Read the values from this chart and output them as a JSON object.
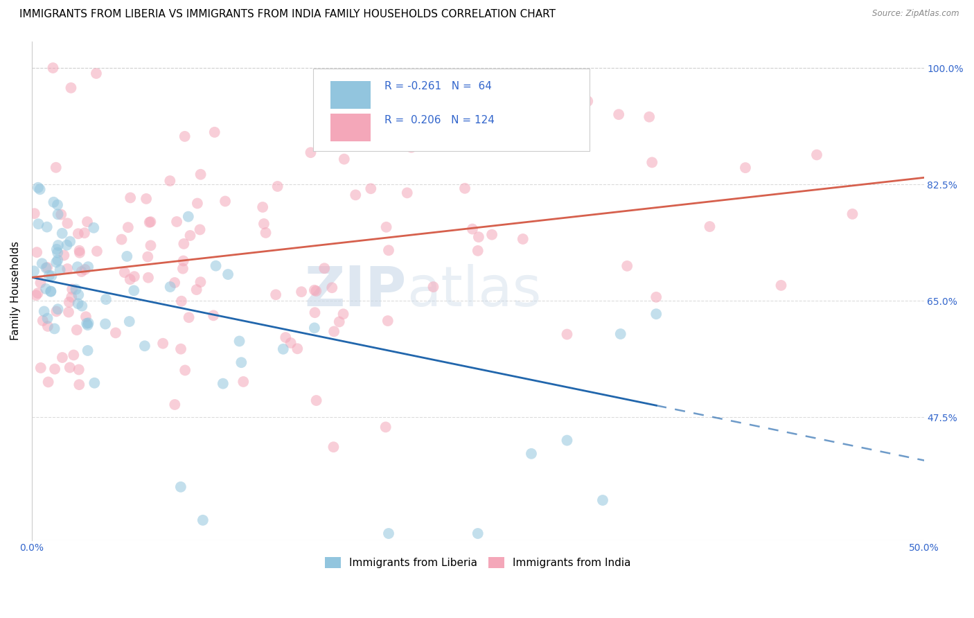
{
  "title": "IMMIGRANTS FROM LIBERIA VS IMMIGRANTS FROM INDIA FAMILY HOUSEHOLDS CORRELATION CHART",
  "source": "Source: ZipAtlas.com",
  "ylabel": "Family Households",
  "xlim": [
    0.0,
    0.5
  ],
  "ylim": [
    0.29,
    1.04
  ],
  "ytick_positions": [
    0.475,
    0.65,
    0.825,
    1.0
  ],
  "ytick_labels": [
    "47.5%",
    "65.0%",
    "82.5%",
    "100.0%"
  ],
  "R_liberia": -0.261,
  "N_liberia": 64,
  "R_india": 0.206,
  "N_india": 124,
  "color_liberia": "#92C5DE",
  "color_india": "#F4A7B9",
  "line_color_liberia": "#2166AC",
  "line_color_india": "#D6604D",
  "background_color": "#ffffff",
  "grid_color": "#cccccc",
  "title_fontsize": 11,
  "axis_label_fontsize": 11,
  "tick_fontsize": 10,
  "legend_label_liberia": "Immigrants from Liberia",
  "legend_label_india": "Immigrants from India",
  "lib_intercept": 0.685,
  "lib_slope": -0.55,
  "ind_intercept": 0.685,
  "ind_slope": 0.3
}
